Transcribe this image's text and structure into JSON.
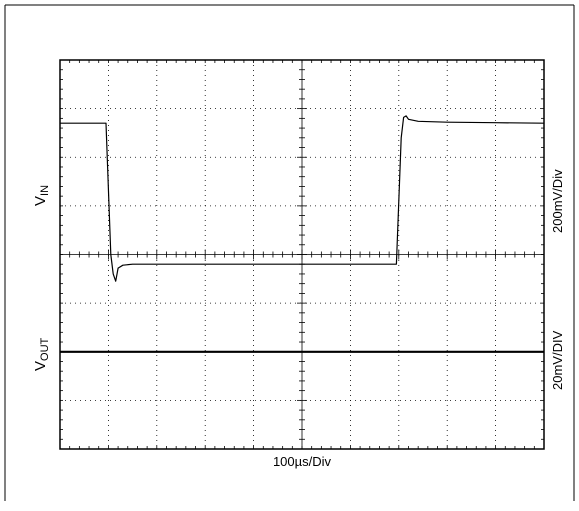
{
  "chart_data": {
    "type": "line",
    "grid": true,
    "divisions": {
      "x": 10,
      "y": 8
    },
    "xlim": [
      0,
      10
    ],
    "ylim": [
      0,
      8
    ],
    "xlabel": "100µs/Div",
    "labels": {
      "vin_left_main": "V",
      "vin_left_sub": "IN",
      "vout_left_main": "V",
      "vout_left_sub": "OUT",
      "vin_scale": "200mV/Div",
      "vout_scale": "20mV/DIV"
    },
    "series": [
      {
        "name": "VIN",
        "color": "#000000",
        "x": [
          0,
          0.95,
          1.05,
          1.1,
          1.15,
          1.2,
          1.3,
          1.5,
          2.0,
          3.0,
          4.0,
          5.0,
          6.0,
          6.95,
          7.05,
          7.1,
          7.15,
          7.2,
          7.4,
          8.0,
          9.0,
          10.0
        ],
        "y": [
          6.7,
          6.7,
          4.0,
          3.6,
          3.45,
          3.72,
          3.78,
          3.8,
          3.8,
          3.8,
          3.8,
          3.8,
          3.8,
          3.8,
          6.4,
          6.82,
          6.85,
          6.78,
          6.74,
          6.72,
          6.71,
          6.7
        ]
      },
      {
        "name": "VOUT",
        "color": "#000000",
        "x": [
          0,
          10
        ],
        "y": [
          2.0,
          2.0
        ]
      }
    ]
  }
}
